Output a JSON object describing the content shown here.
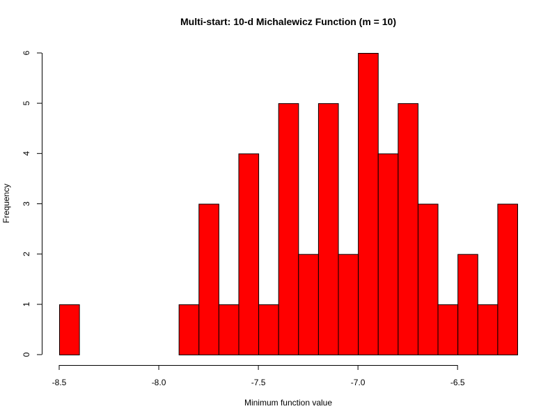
{
  "chart_data": {
    "type": "bar",
    "title": "Multi-start: 10-d Michalewicz Function (m = 10)",
    "xlabel": "Minimum function value",
    "ylabel": "Frequency",
    "bin_width": 0.1,
    "bin_start": -8.5,
    "values": [
      1,
      0,
      0,
      0,
      0,
      0,
      1,
      3,
      1,
      4,
      1,
      5,
      2,
      5,
      2,
      6,
      4,
      5,
      3,
      1,
      2,
      1,
      3
    ],
    "xlim": [
      -8.5,
      -6.2
    ],
    "ylim": [
      0,
      6
    ],
    "x_ticks": [
      "-8.5",
      "-8.0",
      "-7.5",
      "-7.0",
      "-6.5"
    ],
    "x_tick_values": [
      -8.5,
      -8.0,
      -7.5,
      -7.0,
      -6.5
    ],
    "y_ticks": [
      "0",
      "1",
      "2",
      "3",
      "4",
      "5",
      "6"
    ],
    "y_tick_values": [
      0,
      1,
      2,
      3,
      4,
      5,
      6
    ],
    "grid": false,
    "colors": {
      "bar_fill": "#ff0000",
      "bar_stroke": "#000000"
    }
  }
}
